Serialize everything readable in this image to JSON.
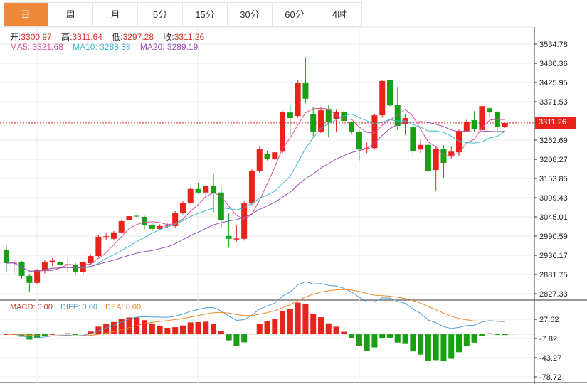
{
  "tabs": [
    {
      "label": "日",
      "active": true
    },
    {
      "label": "周"
    },
    {
      "label": "月"
    },
    {
      "label": "5分"
    },
    {
      "label": "15分"
    },
    {
      "label": "30分"
    },
    {
      "label": "60分"
    },
    {
      "label": "4时"
    }
  ],
  "ohlc_info": {
    "open_label": "开:",
    "open": "3300.97",
    "high_label": "高:",
    "high": "3311.64",
    "low_label": "低:",
    "low": "3297.28",
    "close_label": "收:",
    "close": "3311.26"
  },
  "ma_info": {
    "ma5_label": "MA5:",
    "ma5": "3321.68",
    "ma10_label": "MA10:",
    "ma10": "3288.38",
    "ma20_label": "MA20:",
    "ma20": "3289.19"
  },
  "macd_info": {
    "macd": "MACD: 0.00",
    "diff": "DIFF: 0.00",
    "dea": "DEA: 0.00"
  },
  "last_price": "3311.26",
  "colors": {
    "up": "#e8231c",
    "down": "#16a012",
    "ma5": "#d5549a",
    "ma10": "#3fb8cf",
    "ma20": "#9a4fb4",
    "accent": "#f0883a",
    "diff": "#4e9fd8",
    "dea": "#ec8a2c"
  },
  "chart_data": {
    "type": "candlestick",
    "price_axis_ticks": [
      "3534.78",
      "3480.36",
      "3425.95",
      "3371.53",
      "3262.69",
      "3208.27",
      "3153.85",
      "3099.43",
      "3045.01",
      "2990.59",
      "2936.17",
      "2881.75",
      "2827.33"
    ],
    "price_range": [
      2827.33,
      3534.78
    ],
    "macd_axis_ticks": [
      "27.62",
      "-7.82",
      "-43.27",
      "-78.72"
    ],
    "macd_range": [
      -78.72,
      27.62
    ],
    "candles": [
      [
        2952,
        2964,
        2890,
        2914
      ],
      [
        2913,
        2924,
        2884,
        2915
      ],
      [
        2916,
        2920,
        2870,
        2878
      ],
      [
        2878,
        2882,
        2833,
        2858
      ],
      [
        2858,
        2898,
        2856,
        2894
      ],
      [
        2893,
        2924,
        2884,
        2916
      ],
      [
        2918,
        2928,
        2905,
        2921
      ],
      [
        2918,
        2925,
        2905,
        2910
      ],
      [
        2909,
        2930,
        2890,
        2911
      ],
      [
        2908,
        2915,
        2880,
        2888
      ],
      [
        2888,
        2920,
        2880,
        2916
      ],
      [
        2914,
        2938,
        2910,
        2934
      ],
      [
        2934,
        2994,
        2930,
        2989
      ],
      [
        2988,
        3000,
        2980,
        2990
      ],
      [
        2983,
        3005,
        2978,
        3001
      ],
      [
        3001,
        3037,
        2998,
        3033
      ],
      [
        3035,
        3052,
        3030,
        3047
      ],
      [
        3048,
        3056,
        3040,
        3046
      ],
      [
        3045,
        3048,
        3010,
        3021
      ],
      [
        3023,
        3027,
        3005,
        3011
      ],
      [
        3011,
        3024,
        3008,
        3019
      ],
      [
        3018,
        3026,
        3014,
        3020
      ],
      [
        3019,
        3061,
        3015,
        3057
      ],
      [
        3057,
        3090,
        3052,
        3085
      ],
      [
        3085,
        3128,
        3082,
        3124
      ],
      [
        3124,
        3140,
        3110,
        3114
      ],
      [
        3114,
        3136,
        3100,
        3132
      ],
      [
        3132,
        3168,
        3055,
        3112
      ],
      [
        3114,
        3132,
        3015,
        3035
      ],
      [
        2991,
        3055,
        2958,
        2983
      ],
      [
        2981,
        3023,
        2975,
        2984
      ],
      [
        2983,
        3090,
        2978,
        3083
      ],
      [
        3083,
        3182,
        3078,
        3176
      ],
      [
        3174,
        3244,
        3170,
        3238
      ],
      [
        3224,
        3232,
        3205,
        3210
      ],
      [
        3210,
        3232,
        3205,
        3228
      ],
      [
        3230,
        3346,
        3226,
        3343
      ],
      [
        3341,
        3362,
        3276,
        3325
      ],
      [
        3331,
        3432,
        3326,
        3424
      ],
      [
        3424,
        3498,
        3367,
        3380
      ],
      [
        3337,
        3356,
        3273,
        3287
      ],
      [
        3287,
        3357,
        3283,
        3347
      ],
      [
        3351,
        3361,
        3270,
        3315
      ],
      [
        3323,
        3350,
        3285,
        3343
      ],
      [
        3343,
        3350,
        3308,
        3317
      ],
      [
        3313,
        3316,
        3278,
        3287
      ],
      [
        3287,
        3293,
        3205,
        3236
      ],
      [
        3237,
        3256,
        3226,
        3240
      ],
      [
        3240,
        3337,
        3236,
        3333
      ],
      [
        3333,
        3434,
        3326,
        3430
      ],
      [
        3432,
        3434,
        3359,
        3361
      ],
      [
        3363,
        3414,
        3291,
        3303
      ],
      [
        3307,
        3335,
        3277,
        3325
      ],
      [
        3299,
        3305,
        3214,
        3232
      ],
      [
        3236,
        3264,
        3226,
        3249
      ],
      [
        3249,
        3253,
        3172,
        3176
      ],
      [
        3178,
        3244,
        3120,
        3238
      ],
      [
        3238,
        3248,
        3154,
        3198
      ],
      [
        3216,
        3244,
        3210,
        3230
      ],
      [
        3228,
        3293,
        3216,
        3289
      ],
      [
        3289,
        3320,
        3285,
        3315
      ],
      [
        3319,
        3345,
        3285,
        3293
      ],
      [
        3291,
        3363,
        3287,
        3359
      ],
      [
        3353,
        3357,
        3325,
        3341
      ],
      [
        3343,
        3345,
        3283,
        3299
      ],
      [
        3300.97,
        3311.64,
        3297.28,
        3311.26
      ]
    ],
    "ma_periods": [
      5,
      10,
      20
    ],
    "macd_params": [
      12,
      26,
      9
    ]
  }
}
